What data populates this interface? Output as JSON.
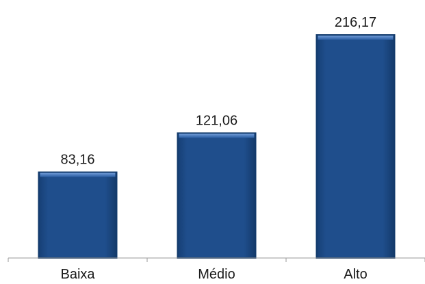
{
  "chart_data": {
    "type": "bar",
    "categories": [
      "Baixa",
      "Médio",
      "Alto"
    ],
    "values": [
      83.16,
      121.06,
      216.17
    ],
    "value_labels": [
      "83,16",
      "121,06",
      "216,17"
    ],
    "title": "",
    "xlabel": "",
    "ylabel": "",
    "ylim": [
      0,
      250
    ],
    "grid": false,
    "legend": "none",
    "bar_color": "#1f4e8c",
    "bar_edge_color": "#123a6b",
    "axis_color": "#9a9a9a"
  }
}
